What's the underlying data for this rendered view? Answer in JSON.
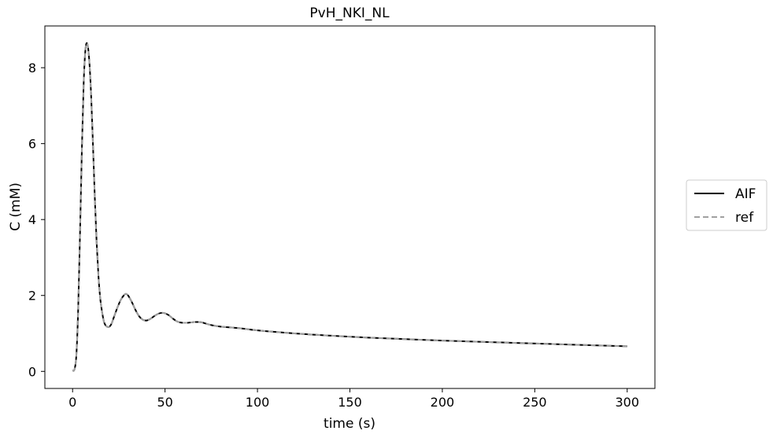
{
  "chart_data": {
    "type": "line",
    "title": "PvH_NKI_NL",
    "xlabel": "time (s)",
    "ylabel": "C (mM)",
    "xlim": [
      -15,
      315
    ],
    "ylim": [
      -0.45,
      9.1
    ],
    "xticks": [
      0,
      50,
      100,
      150,
      200,
      250,
      300
    ],
    "yticks": [
      0,
      2,
      4,
      6,
      8
    ],
    "grid": false,
    "legend_position": "right-outside",
    "x": [
      0,
      1,
      2,
      3,
      4,
      5,
      6,
      7,
      8,
      9,
      10,
      11,
      12,
      13,
      14,
      15,
      16,
      17,
      18,
      19,
      20,
      21,
      22,
      24,
      26,
      28,
      29,
      30,
      32,
      34,
      36,
      38,
      40,
      42,
      44,
      46,
      48,
      50,
      52,
      54,
      56,
      58,
      60,
      62,
      64,
      66,
      68,
      70,
      72,
      75,
      80,
      90,
      100,
      120,
      140,
      160,
      180,
      200,
      220,
      240,
      260,
      280,
      300
    ],
    "series": [
      {
        "name": "AIF",
        "color": "#000000",
        "style": "solid",
        "values": [
          0.02,
          0.05,
          0.4,
          1.6,
          3.6,
          5.8,
          7.6,
          8.5,
          8.62,
          8.2,
          7.3,
          6.0,
          4.6,
          3.4,
          2.5,
          1.9,
          1.55,
          1.3,
          1.2,
          1.17,
          1.18,
          1.25,
          1.38,
          1.65,
          1.88,
          2.02,
          2.04,
          2.0,
          1.83,
          1.62,
          1.45,
          1.36,
          1.34,
          1.38,
          1.45,
          1.51,
          1.54,
          1.53,
          1.48,
          1.4,
          1.33,
          1.29,
          1.28,
          1.28,
          1.29,
          1.3,
          1.3,
          1.29,
          1.26,
          1.22,
          1.18,
          1.14,
          1.08,
          1.0,
          0.94,
          0.89,
          0.85,
          0.81,
          0.78,
          0.75,
          0.72,
          0.69,
          0.66
        ]
      },
      {
        "name": "ref",
        "color": "#a0a0a0",
        "style": "dashed",
        "values": [
          0.02,
          0.05,
          0.4,
          1.6,
          3.6,
          5.8,
          7.6,
          8.5,
          8.62,
          8.2,
          7.3,
          6.0,
          4.6,
          3.4,
          2.5,
          1.9,
          1.55,
          1.3,
          1.2,
          1.17,
          1.18,
          1.25,
          1.38,
          1.65,
          1.88,
          2.02,
          2.04,
          2.0,
          1.83,
          1.62,
          1.45,
          1.36,
          1.34,
          1.38,
          1.45,
          1.51,
          1.54,
          1.53,
          1.48,
          1.4,
          1.33,
          1.29,
          1.28,
          1.28,
          1.29,
          1.3,
          1.3,
          1.29,
          1.26,
          1.22,
          1.18,
          1.14,
          1.08,
          1.0,
          0.94,
          0.89,
          0.85,
          0.81,
          0.78,
          0.75,
          0.72,
          0.69,
          0.66
        ]
      }
    ]
  }
}
